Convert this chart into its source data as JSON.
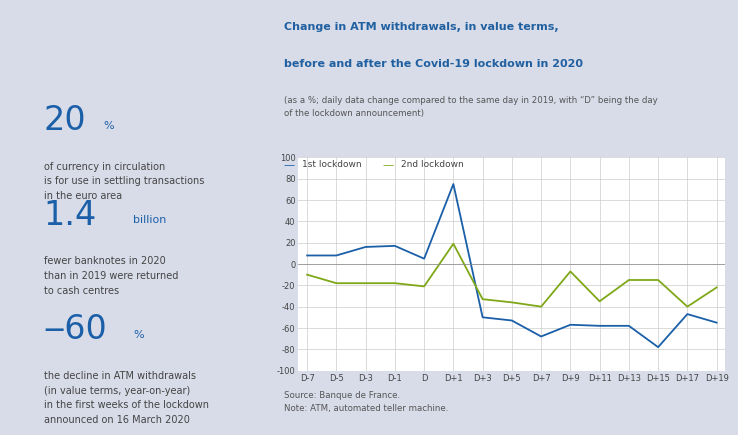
{
  "bg_color": "#d8dce8",
  "chart_bg": "#ffffff",
  "title_line1": "Change in ATM withdrawals, in value terms,",
  "title_line2": "before and after the Covid-19 lockdown in 2020",
  "subtitle": "(as a %; daily data change compared to the same day in 2019, with “D” being the day\nof the lockdown announcement)",
  "source_note": "Source: Banque de France.\nNote: ATM, automated teller machine.",
  "title_color": "#2060a0",
  "x_labels": [
    "D-7",
    "D-5",
    "D-3",
    "D-1",
    "D",
    "D+1",
    "D+3",
    "D+5",
    "D+7",
    "D+9",
    "D+11",
    "D+13",
    "D+15",
    "D+17",
    "D+19"
  ],
  "lockdown1_color": "#1a5fa8",
  "lockdown2_color": "#7ea818",
  "lockdown1_label": "1st lockdown",
  "lockdown2_label": "2nd lockdown",
  "lockdown1_values": [
    8,
    8,
    16,
    17,
    5,
    75,
    -50,
    -53,
    -68,
    -57,
    -58,
    -58,
    -78,
    -47,
    -55
  ],
  "lockdown2_values": [
    -10,
    -18,
    -18,
    -18,
    -21,
    19,
    -33,
    -36,
    -40,
    -7,
    -35,
    -15,
    -15,
    -40,
    -22
  ],
  "ylim": [
    -100,
    100
  ],
  "yticks": [
    -100,
    -80,
    -60,
    -40,
    -20,
    0,
    20,
    40,
    60,
    80,
    100
  ],
  "stat_big_color": "#1a5fa8",
  "stat_small_color": "#1a5fa8",
  "stat_desc_color": "#444444",
  "stats": [
    {
      "big": "20",
      "small": "%",
      "desc": "of currency in circulation\nis for use in settling transactions\nin the euro area"
    },
    {
      "big": "1.4",
      "small": "billion",
      "desc": "fewer banknotes in 2020\nthan in 2019 were returned\nto cash centres"
    },
    {
      "big": "‒60",
      "small": "%",
      "desc": "the decline in ATM withdrawals\n(in value terms, year-on-year)\nin the first weeks of the lockdown\nannounced on 16 March 2020"
    }
  ]
}
